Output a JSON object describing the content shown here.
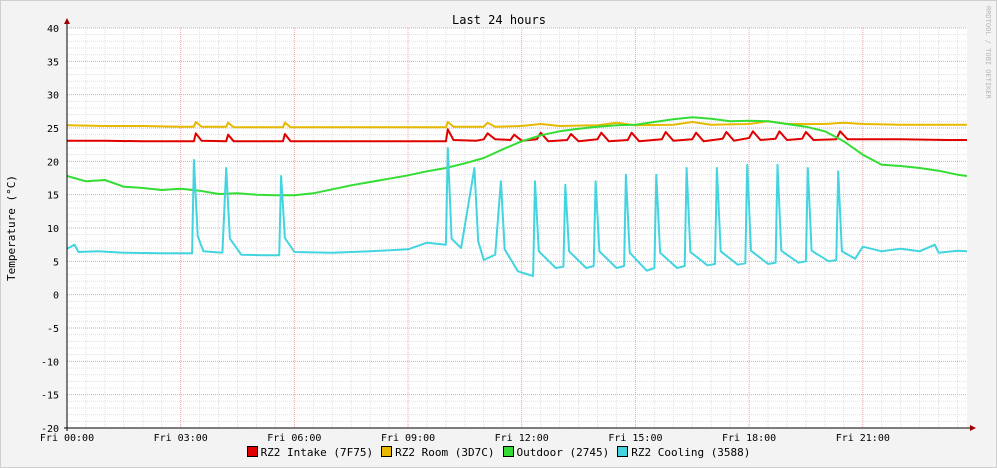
{
  "chart_data": {
    "type": "line",
    "title": "Last 24 hours",
    "ylabel": "Temperature (°C)",
    "watermark": "RRDTOOL / TOBI OETIKER",
    "ylim": [
      -20,
      40
    ],
    "yticks": [
      40,
      35,
      30,
      25,
      20,
      15,
      10,
      5,
      0,
      -5,
      -10,
      -15,
      -20
    ],
    "xlim_hours": [
      0,
      23.75
    ],
    "xticks": [
      {
        "hour": 0,
        "label": "Fri 00:00"
      },
      {
        "hour": 3,
        "label": "Fri 03:00"
      },
      {
        "hour": 6,
        "label": "Fri 06:00"
      },
      {
        "hour": 9,
        "label": "Fri 09:00"
      },
      {
        "hour": 12,
        "label": "Fri 12:00"
      },
      {
        "hour": 15,
        "label": "Fri 15:00"
      },
      {
        "hour": 18,
        "label": "Fri 18:00"
      },
      {
        "hour": 21,
        "label": "Fri 21:00"
      }
    ],
    "grid": true,
    "series": [
      {
        "name": "RZ2 Intake (7F75)",
        "color": "#e00000",
        "points": [
          [
            0,
            23.1
          ],
          [
            1,
            23.1
          ],
          [
            2,
            23.0
          ],
          [
            3,
            23.0
          ],
          [
            3.35,
            23.0
          ],
          [
            3.4,
            24.2
          ],
          [
            3.55,
            23.1
          ],
          [
            4.2,
            23.0
          ],
          [
            4.25,
            24.0
          ],
          [
            4.4,
            23.0
          ],
          [
            5.7,
            23.0
          ],
          [
            5.75,
            24.1
          ],
          [
            5.9,
            23.0
          ],
          [
            7,
            23.0
          ],
          [
            8,
            23.0
          ],
          [
            9,
            23.0
          ],
          [
            10,
            23.0
          ],
          [
            10.05,
            24.8
          ],
          [
            10.2,
            23.2
          ],
          [
            10.8,
            23.1
          ],
          [
            11,
            23.3
          ],
          [
            11.1,
            24.2
          ],
          [
            11.3,
            23.3
          ],
          [
            11.7,
            23.2
          ],
          [
            11.8,
            24.0
          ],
          [
            12.0,
            23.1
          ],
          [
            12.4,
            23.3
          ],
          [
            12.5,
            24.3
          ],
          [
            12.7,
            23.0
          ],
          [
            13.2,
            23.2
          ],
          [
            13.3,
            24.1
          ],
          [
            13.5,
            23.0
          ],
          [
            14.0,
            23.3
          ],
          [
            14.1,
            24.3
          ],
          [
            14.3,
            23.0
          ],
          [
            14.8,
            23.2
          ],
          [
            14.9,
            24.3
          ],
          [
            15.1,
            23.0
          ],
          [
            15.7,
            23.3
          ],
          [
            15.8,
            24.4
          ],
          [
            16.0,
            23.1
          ],
          [
            16.5,
            23.3
          ],
          [
            16.6,
            24.3
          ],
          [
            16.8,
            23.0
          ],
          [
            17.3,
            23.4
          ],
          [
            17.4,
            24.4
          ],
          [
            17.6,
            23.1
          ],
          [
            18.0,
            23.5
          ],
          [
            18.1,
            24.5
          ],
          [
            18.3,
            23.2
          ],
          [
            18.7,
            23.4
          ],
          [
            18.8,
            24.5
          ],
          [
            19.0,
            23.2
          ],
          [
            19.4,
            23.4
          ],
          [
            19.5,
            24.4
          ],
          [
            19.7,
            23.2
          ],
          [
            20.3,
            23.3
          ],
          [
            20.4,
            24.5
          ],
          [
            20.6,
            23.3
          ],
          [
            21,
            23.3
          ],
          [
            22,
            23.3
          ],
          [
            23.2,
            23.2
          ],
          [
            23.75,
            23.2
          ]
        ]
      },
      {
        "name": "RZ2 Room (3D7C)",
        "color": "#e6b800",
        "points": [
          [
            0,
            25.4
          ],
          [
            1,
            25.3
          ],
          [
            2,
            25.3
          ],
          [
            3,
            25.2
          ],
          [
            3.35,
            25.2
          ],
          [
            3.4,
            25.9
          ],
          [
            3.55,
            25.2
          ],
          [
            4.2,
            25.2
          ],
          [
            4.25,
            25.8
          ],
          [
            4.4,
            25.1
          ],
          [
            5.7,
            25.1
          ],
          [
            5.75,
            25.8
          ],
          [
            5.9,
            25.1
          ],
          [
            7,
            25.1
          ],
          [
            8,
            25.1
          ],
          [
            9,
            25.1
          ],
          [
            10,
            25.1
          ],
          [
            10.05,
            25.9
          ],
          [
            10.2,
            25.2
          ],
          [
            11,
            25.2
          ],
          [
            11.1,
            25.8
          ],
          [
            11.3,
            25.2
          ],
          [
            12,
            25.3
          ],
          [
            12.5,
            25.6
          ],
          [
            13,
            25.3
          ],
          [
            14,
            25.4
          ],
          [
            14.5,
            25.8
          ],
          [
            15,
            25.4
          ],
          [
            16,
            25.5
          ],
          [
            16.5,
            25.9
          ],
          [
            17,
            25.5
          ],
          [
            18,
            25.6
          ],
          [
            18.5,
            26.0
          ],
          [
            19,
            25.6
          ],
          [
            20,
            25.6
          ],
          [
            20.5,
            25.8
          ],
          [
            21,
            25.6
          ],
          [
            22,
            25.5
          ],
          [
            23,
            25.5
          ],
          [
            23.75,
            25.5
          ]
        ]
      },
      {
        "name": "Outdoor (2745)",
        "color": "#33dd33",
        "points": [
          [
            0,
            17.8
          ],
          [
            0.5,
            17.0
          ],
          [
            1,
            17.2
          ],
          [
            1.5,
            16.2
          ],
          [
            2,
            16.0
          ],
          [
            2.5,
            15.7
          ],
          [
            3,
            15.9
          ],
          [
            3.5,
            15.6
          ],
          [
            4,
            15.1
          ],
          [
            4.5,
            15.2
          ],
          [
            5,
            15.0
          ],
          [
            5.5,
            14.9
          ],
          [
            6,
            14.9
          ],
          [
            6.5,
            15.2
          ],
          [
            7,
            15.8
          ],
          [
            7.5,
            16.4
          ],
          [
            8,
            16.9
          ],
          [
            8.5,
            17.4
          ],
          [
            9,
            17.9
          ],
          [
            9.5,
            18.5
          ],
          [
            10,
            19.0
          ],
          [
            10.5,
            19.7
          ],
          [
            11,
            20.5
          ],
          [
            11.5,
            21.8
          ],
          [
            12,
            23.0
          ],
          [
            12.5,
            23.9
          ],
          [
            13,
            24.5
          ],
          [
            13.5,
            24.9
          ],
          [
            14,
            25.2
          ],
          [
            14.5,
            25.4
          ],
          [
            15,
            25.5
          ],
          [
            15.5,
            25.9
          ],
          [
            16,
            26.3
          ],
          [
            16.5,
            26.6
          ],
          [
            17,
            26.4
          ],
          [
            17.5,
            26.0
          ],
          [
            18,
            26.1
          ],
          [
            18.5,
            26.0
          ],
          [
            19,
            25.6
          ],
          [
            19.5,
            25.2
          ],
          [
            20,
            24.5
          ],
          [
            20.5,
            23.0
          ],
          [
            21,
            21.0
          ],
          [
            21.5,
            19.5
          ],
          [
            22,
            19.3
          ],
          [
            22.5,
            19.0
          ],
          [
            23,
            18.6
          ],
          [
            23.5,
            18.0
          ],
          [
            23.75,
            17.8
          ]
        ]
      },
      {
        "name": "RZ2 Cooling (3588)",
        "color": "#44d4e0",
        "points": [
          [
            0,
            6.9
          ],
          [
            0.2,
            7.5
          ],
          [
            0.3,
            6.4
          ],
          [
            0.8,
            6.5
          ],
          [
            1.5,
            6.3
          ],
          [
            2.5,
            6.2
          ],
          [
            3.3,
            6.2
          ],
          [
            3.35,
            20.2
          ],
          [
            3.45,
            8.8
          ],
          [
            3.6,
            6.5
          ],
          [
            4.1,
            6.3
          ],
          [
            4.2,
            19.0
          ],
          [
            4.3,
            8.4
          ],
          [
            4.6,
            6.0
          ],
          [
            5.2,
            5.9
          ],
          [
            5.6,
            5.9
          ],
          [
            5.65,
            17.8
          ],
          [
            5.75,
            8.5
          ],
          [
            6.0,
            6.4
          ],
          [
            7,
            6.3
          ],
          [
            8,
            6.5
          ],
          [
            9,
            6.8
          ],
          [
            9.5,
            7.8
          ],
          [
            10,
            7.5
          ],
          [
            10.05,
            22.0
          ],
          [
            10.15,
            8.4
          ],
          [
            10.4,
            7.0
          ],
          [
            10.75,
            19.0
          ],
          [
            10.85,
            8.0
          ],
          [
            11.0,
            5.2
          ],
          [
            11.3,
            6.0
          ],
          [
            11.45,
            17.0
          ],
          [
            11.55,
            6.8
          ],
          [
            11.9,
            3.5
          ],
          [
            12.3,
            2.8
          ],
          [
            12.35,
            17.0
          ],
          [
            12.45,
            6.5
          ],
          [
            12.9,
            4.0
          ],
          [
            13.1,
            4.2
          ],
          [
            13.15,
            16.5
          ],
          [
            13.25,
            6.5
          ],
          [
            13.7,
            4.0
          ],
          [
            13.9,
            4.3
          ],
          [
            13.95,
            17.0
          ],
          [
            14.05,
            6.5
          ],
          [
            14.5,
            4.0
          ],
          [
            14.7,
            4.3
          ],
          [
            14.75,
            18.0
          ],
          [
            14.85,
            6.3
          ],
          [
            15.3,
            3.6
          ],
          [
            15.5,
            4.0
          ],
          [
            15.55,
            18.0
          ],
          [
            15.65,
            6.3
          ],
          [
            16.1,
            4.0
          ],
          [
            16.3,
            4.3
          ],
          [
            16.35,
            19.0
          ],
          [
            16.45,
            6.4
          ],
          [
            16.9,
            4.4
          ],
          [
            17.1,
            4.6
          ],
          [
            17.15,
            19.0
          ],
          [
            17.25,
            6.5
          ],
          [
            17.7,
            4.5
          ],
          [
            17.9,
            4.7
          ],
          [
            17.95,
            19.5
          ],
          [
            18.05,
            6.6
          ],
          [
            18.5,
            4.6
          ],
          [
            18.7,
            4.8
          ],
          [
            18.75,
            19.5
          ],
          [
            18.85,
            6.6
          ],
          [
            19.3,
            4.8
          ],
          [
            19.5,
            5.0
          ],
          [
            19.55,
            19.0
          ],
          [
            19.65,
            6.6
          ],
          [
            20.1,
            5.0
          ],
          [
            20.3,
            5.2
          ],
          [
            20.35,
            18.5
          ],
          [
            20.45,
            6.5
          ],
          [
            20.8,
            5.4
          ],
          [
            21,
            7.2
          ],
          [
            21.5,
            6.5
          ],
          [
            22,
            6.9
          ],
          [
            22.5,
            6.5
          ],
          [
            22.9,
            7.5
          ],
          [
            23,
            6.3
          ],
          [
            23.5,
            6.6
          ],
          [
            23.75,
            6.5
          ]
        ]
      }
    ]
  }
}
